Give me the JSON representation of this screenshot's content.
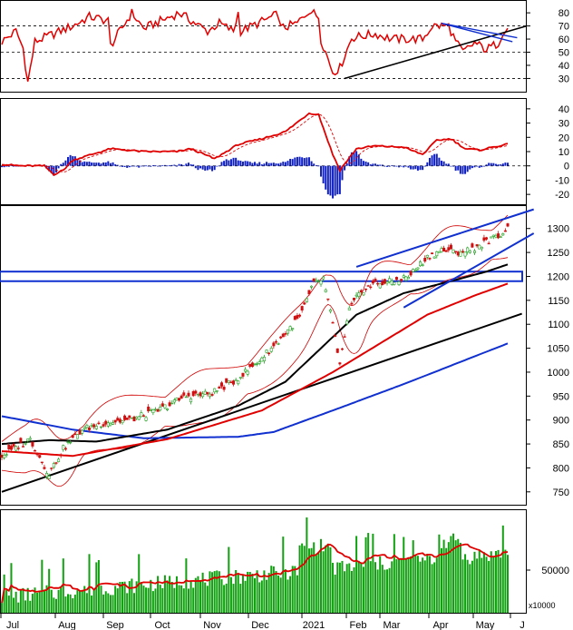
{
  "colors": {
    "rsi": "#e00000",
    "macd": "#e00000",
    "signal": "#e00000",
    "hist": "#1020c0",
    "ma_black": "#000000",
    "ma_red": "#e00000",
    "ma_blue": "#1030d0",
    "bollinger": "#d00000",
    "channel": "#1030d0",
    "up_candle": "#22a022",
    "down_candle": "#d01010",
    "volume": "#10a010",
    "volume_ma": "#e00000"
  },
  "months": [
    "Jul",
    "Aug",
    "Sep",
    "Oct",
    "Nov",
    "Dec",
    "2021",
    "Feb",
    "Mar",
    "Apr",
    "May",
    "J"
  ],
  "chart_data": [
    {
      "type": "line",
      "panel": "rsi",
      "yticks": [
        80,
        70,
        60,
        50,
        40,
        30
      ],
      "ylim": [
        22,
        87
      ],
      "dashed_levels": [
        70,
        50,
        30
      ],
      "key_points": [
        {
          "x": 0,
          "y": 58
        },
        {
          "x": 6,
          "y": 66
        },
        {
          "x": 9,
          "y": 53
        },
        {
          "x": 11,
          "y": 27
        },
        {
          "x": 14,
          "y": 58
        },
        {
          "x": 30,
          "y": 70
        },
        {
          "x": 37,
          "y": 77
        },
        {
          "x": 45,
          "y": 74
        },
        {
          "x": 46,
          "y": 55
        },
        {
          "x": 55,
          "y": 80
        },
        {
          "x": 60,
          "y": 68
        },
        {
          "x": 75,
          "y": 80
        },
        {
          "x": 87,
          "y": 66
        },
        {
          "x": 92,
          "y": 72
        },
        {
          "x": 98,
          "y": 66
        },
        {
          "x": 100,
          "y": 80
        },
        {
          "x": 101,
          "y": 66
        },
        {
          "x": 117,
          "y": 79
        },
        {
          "x": 118,
          "y": 68
        },
        {
          "x": 125,
          "y": 72
        },
        {
          "x": 130,
          "y": 82
        },
        {
          "x": 134,
          "y": 77
        },
        {
          "x": 135,
          "y": 60
        },
        {
          "x": 140,
          "y": 35
        },
        {
          "x": 143,
          "y": 38
        },
        {
          "x": 148,
          "y": 61
        },
        {
          "x": 158,
          "y": 64
        },
        {
          "x": 165,
          "y": 60
        },
        {
          "x": 178,
          "y": 60
        },
        {
          "x": 182,
          "y": 70
        },
        {
          "x": 189,
          "y": 70
        },
        {
          "x": 192,
          "y": 58
        },
        {
          "x": 195,
          "y": 50
        },
        {
          "x": 200,
          "y": 57
        },
        {
          "x": 205,
          "y": 52
        },
        {
          "x": 210,
          "y": 57
        },
        {
          "x": 212,
          "y": 66
        },
        {
          "x": 214,
          "y": 68
        }
      ]
    },
    {
      "type": "bar",
      "panel": "macd",
      "yticks": [
        40,
        30,
        20,
        10,
        0,
        -10,
        -20
      ],
      "ylim": [
        -25,
        45
      ],
      "macd_points": [
        {
          "x": 0,
          "y": 1
        },
        {
          "x": 8,
          "y": 0
        },
        {
          "x": 18,
          "y": 0
        },
        {
          "x": 22,
          "y": -6
        },
        {
          "x": 26,
          "y": -3
        },
        {
          "x": 30,
          "y": 4
        },
        {
          "x": 40,
          "y": 9
        },
        {
          "x": 46,
          "y": 12
        },
        {
          "x": 60,
          "y": 10
        },
        {
          "x": 74,
          "y": 10
        },
        {
          "x": 80,
          "y": 12
        },
        {
          "x": 90,
          "y": 5
        },
        {
          "x": 100,
          "y": 15
        },
        {
          "x": 110,
          "y": 19
        },
        {
          "x": 120,
          "y": 24
        },
        {
          "x": 130,
          "y": 37
        },
        {
          "x": 134,
          "y": 36
        },
        {
          "x": 140,
          "y": 8
        },
        {
          "x": 143,
          "y": -3
        },
        {
          "x": 150,
          "y": 12
        },
        {
          "x": 158,
          "y": 14
        },
        {
          "x": 170,
          "y": 13
        },
        {
          "x": 178,
          "y": 8
        },
        {
          "x": 184,
          "y": 18
        },
        {
          "x": 190,
          "y": 19
        },
        {
          "x": 196,
          "y": 12
        },
        {
          "x": 202,
          "y": 11
        },
        {
          "x": 210,
          "y": 14
        },
        {
          "x": 214,
          "y": 15
        }
      ],
      "hist_range": {
        "min": -22,
        "max": 5
      }
    },
    {
      "type": "line",
      "panel": "price",
      "yticks": [
        1300,
        1250,
        1200,
        1150,
        1100,
        1050,
        1000,
        950,
        900,
        850,
        800,
        750
      ],
      "ylim": [
        725,
        1345
      ],
      "close_points": [
        {
          "x": 0,
          "y": 825
        },
        {
          "x": 12,
          "y": 860
        },
        {
          "x": 18,
          "y": 803
        },
        {
          "x": 20,
          "y": 788
        },
        {
          "x": 26,
          "y": 840
        },
        {
          "x": 34,
          "y": 880
        },
        {
          "x": 44,
          "y": 895
        },
        {
          "x": 54,
          "y": 900
        },
        {
          "x": 66,
          "y": 920
        },
        {
          "x": 78,
          "y": 950
        },
        {
          "x": 88,
          "y": 955
        },
        {
          "x": 98,
          "y": 980
        },
        {
          "x": 108,
          "y": 1020
        },
        {
          "x": 118,
          "y": 1070
        },
        {
          "x": 126,
          "y": 1115
        },
        {
          "x": 132,
          "y": 1185
        },
        {
          "x": 136,
          "y": 1195
        },
        {
          "x": 140,
          "y": 1100
        },
        {
          "x": 143,
          "y": 1015
        },
        {
          "x": 147,
          "y": 1130
        },
        {
          "x": 152,
          "y": 1170
        },
        {
          "x": 158,
          "y": 1185
        },
        {
          "x": 166,
          "y": 1190
        },
        {
          "x": 172,
          "y": 1200
        },
        {
          "x": 180,
          "y": 1240
        },
        {
          "x": 186,
          "y": 1255
        },
        {
          "x": 192,
          "y": 1250
        },
        {
          "x": 198,
          "y": 1255
        },
        {
          "x": 204,
          "y": 1270
        },
        {
          "x": 210,
          "y": 1285
        },
        {
          "x": 214,
          "y": 1300
        }
      ],
      "ma_black": [
        {
          "x": 0,
          "y": 850
        },
        {
          "x": 20,
          "y": 858
        },
        {
          "x": 40,
          "y": 855
        },
        {
          "x": 70,
          "y": 880
        },
        {
          "x": 100,
          "y": 930
        },
        {
          "x": 120,
          "y": 980
        },
        {
          "x": 135,
          "y": 1050
        },
        {
          "x": 150,
          "y": 1120
        },
        {
          "x": 170,
          "y": 1165
        },
        {
          "x": 190,
          "y": 1190
        },
        {
          "x": 205,
          "y": 1210
        },
        {
          "x": 214,
          "y": 1225
        }
      ],
      "ma_red": [
        {
          "x": 0,
          "y": 835
        },
        {
          "x": 30,
          "y": 825
        },
        {
          "x": 70,
          "y": 860
        },
        {
          "x": 110,
          "y": 920
        },
        {
          "x": 140,
          "y": 1000
        },
        {
          "x": 160,
          "y": 1060
        },
        {
          "x": 180,
          "y": 1120
        },
        {
          "x": 200,
          "y": 1160
        },
        {
          "x": 214,
          "y": 1185
        }
      ],
      "ma_blue": [
        {
          "x": 0,
          "y": 908
        },
        {
          "x": 30,
          "y": 880
        },
        {
          "x": 60,
          "y": 862
        },
        {
          "x": 100,
          "y": 865
        },
        {
          "x": 115,
          "y": 875
        },
        {
          "x": 140,
          "y": 920
        },
        {
          "x": 170,
          "y": 975
        },
        {
          "x": 214,
          "y": 1060
        }
      ],
      "support_line": [
        {
          "x": 0,
          "y": 750
        },
        {
          "x": 220,
          "y": 1122
        }
      ],
      "channel_upper": [
        {
          "x": 150,
          "y": 1220
        },
        {
          "x": 225,
          "y": 1340
        }
      ],
      "channel_lower": [
        {
          "x": 170,
          "y": 1135
        },
        {
          "x": 225,
          "y": 1290
        }
      ],
      "resistance_zone": [
        1190,
        1210
      ]
    },
    {
      "type": "bar",
      "panel": "volume",
      "ytick_labels": [
        "50000"
      ],
      "unit": "x10000"
    }
  ]
}
